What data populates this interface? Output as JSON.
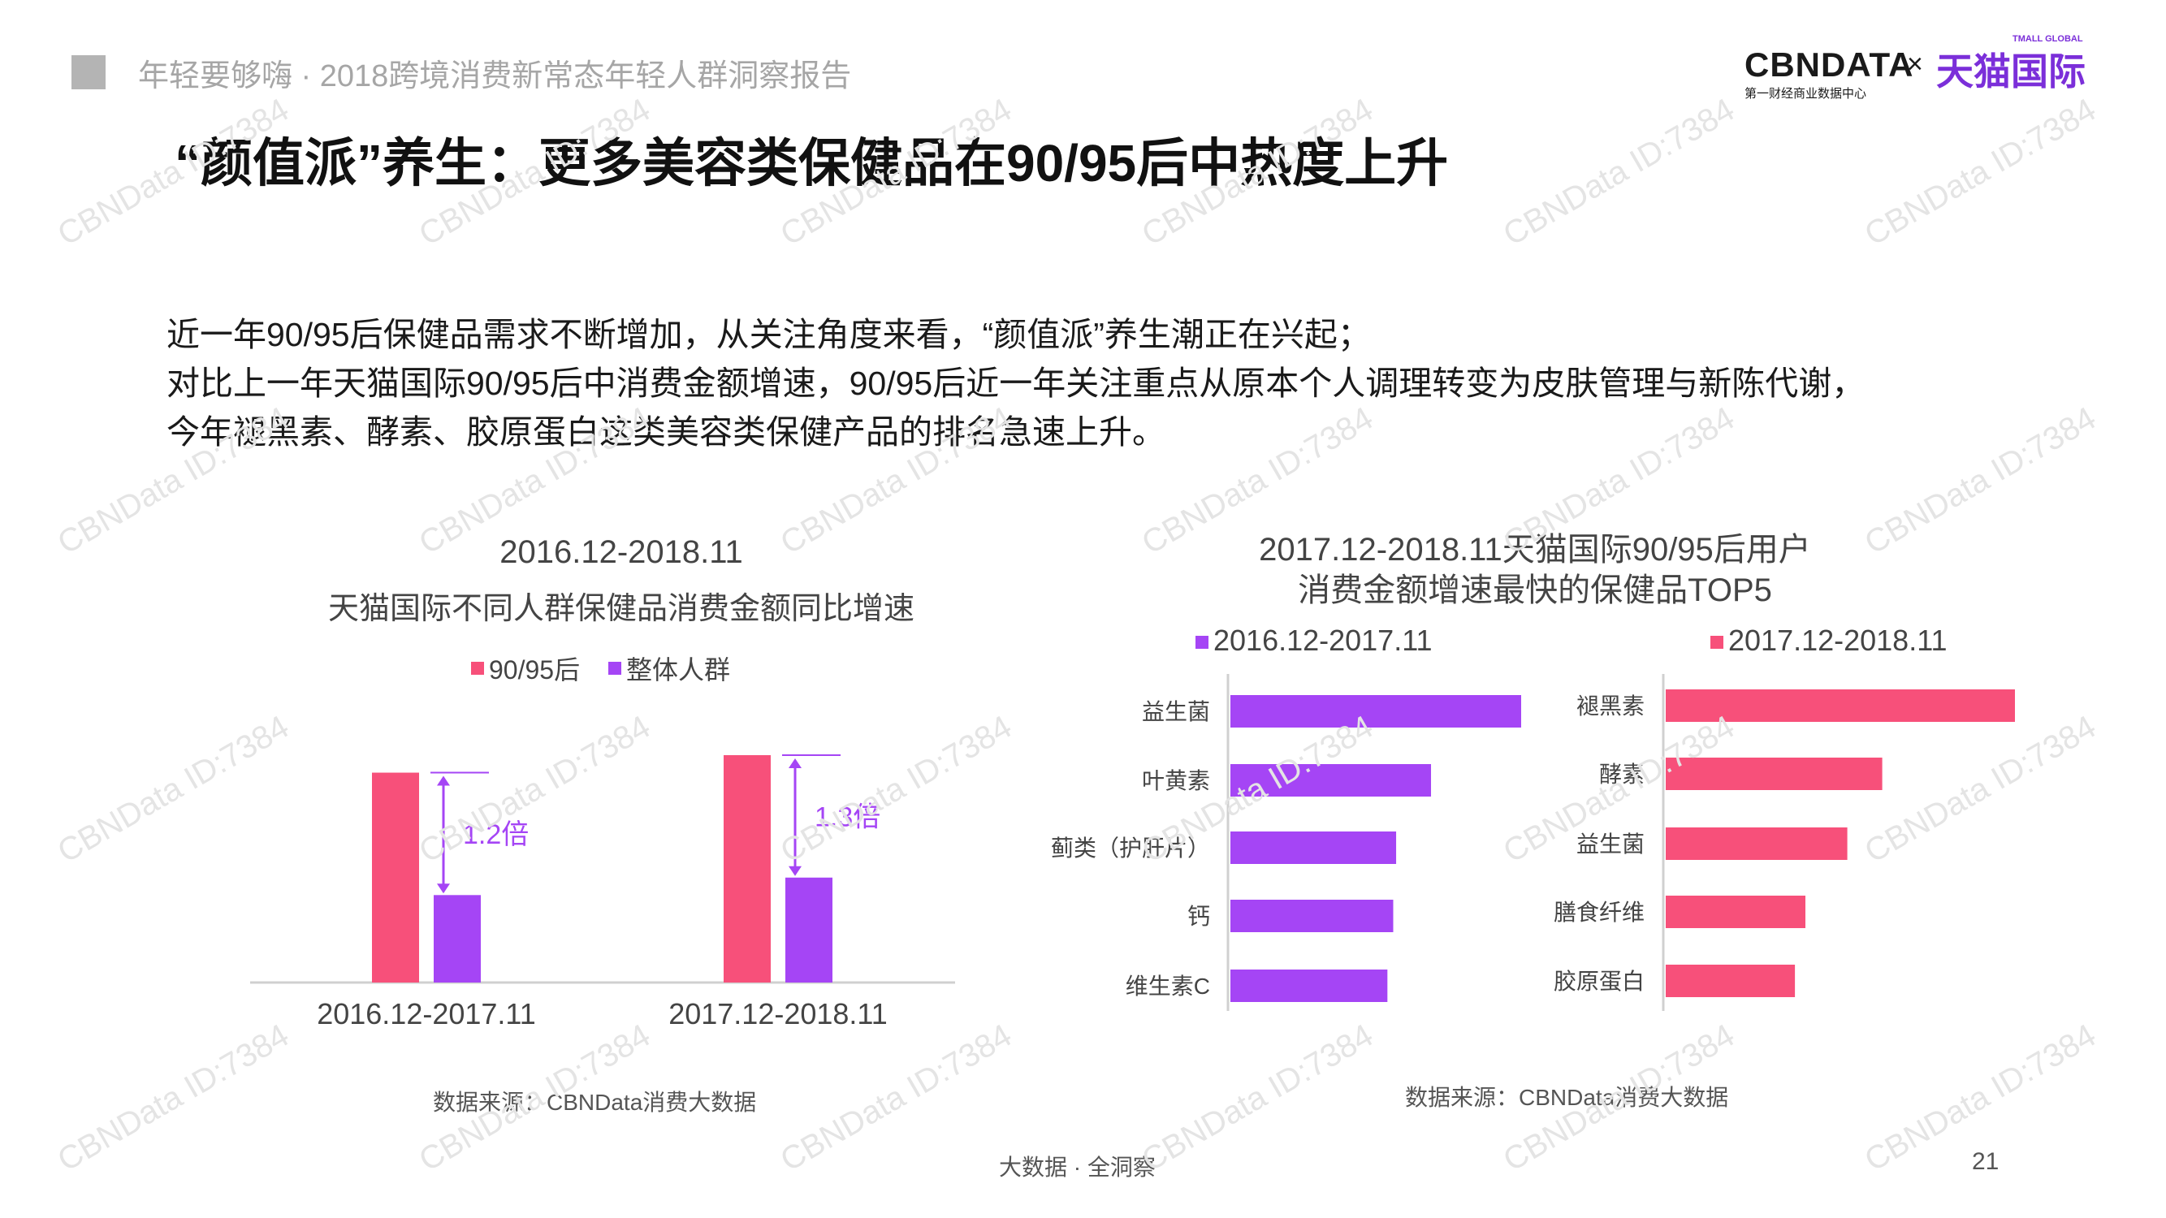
{
  "header": {
    "title": "年轻要够嗨 · 2018跨境消费新常态年轻人群洞察报告",
    "logo_cbn": "CBNDATA",
    "logo_times": "×",
    "logo_tmall": "天猫国际",
    "logo_tmall_en": "TMALL GLOBAL",
    "logo_cbn_sub": "第一财经商业数据中心"
  },
  "main_title": "“颜值派”养生：更多美容类保健品在90/95后中热度上升",
  "intro": [
    "近一年90/95后保健品需求不断增加，从关注角度来看，“颜值派”养生潮正在兴起；",
    "对比上一年天猫国际90/95后中消费金额增速，90/95后近一年关注重点从原本个人调理转变为皮肤管理与新陈代谢，",
    "今年褪黑素、酵素、胶原蛋白这类美容类保健产品的排名急速上升。"
  ],
  "watermark_text": "CBNData ID:7384",
  "colors": {
    "pink": "#f7507a",
    "purple": "#a545f5",
    "axis": "#d0d0d0",
    "arrow": "#a545f5"
  },
  "chart_data": [
    {
      "type": "bar",
      "title": "2016.12-2018.11",
      "subtitle": "天猫国际不同人群保健品消费金额同比增速",
      "categories": [
        "2016.12-2017.11",
        "2017.12-2018.11"
      ],
      "series": [
        {
          "name": "90/95后",
          "color": "#f7507a",
          "values": [
            1.2,
            1.3
          ]
        },
        {
          "name": "整体人群",
          "color": "#a545f5",
          "values": [
            0.5,
            0.6
          ]
        }
      ],
      "annotations": [
        "1.2倍",
        "1.3倍"
      ],
      "legend": "top-center",
      "grid": false
    },
    {
      "type": "bar",
      "orientation": "horizontal",
      "title": "2017.12-2018.11天猫国际90/95后用户",
      "subtitle": "消费金额增速最快的保健品TOP5",
      "panels": [
        {
          "name": "2016.12-2017.11",
          "color": "#a545f5",
          "categories": [
            "益生菌",
            "叶黄素",
            "蓟类（护肝片）",
            "钙",
            "维生素C"
          ],
          "values": [
            100,
            69,
            57,
            56,
            54
          ]
        },
        {
          "name": "2017.12-2018.11",
          "color": "#f7507a",
          "categories": [
            "褪黑素",
            "酵素",
            "益生菌",
            "膳食纤维",
            "胶原蛋白"
          ],
          "values": [
            100,
            62,
            52,
            40,
            37
          ]
        }
      ],
      "legend": "top",
      "grid": false
    }
  ],
  "source_left": "数据来源：CBNData消费大数据",
  "source_right": "数据来源：CBNData消费大数据",
  "footer": "大数据 · 全洞察",
  "page_number": "21"
}
